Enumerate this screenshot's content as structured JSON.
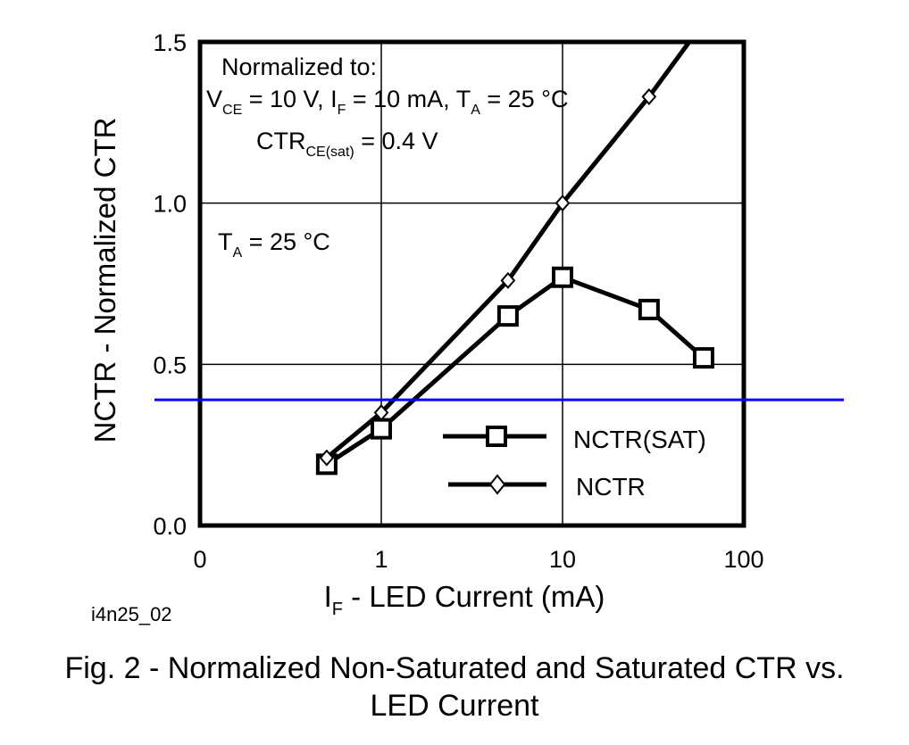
{
  "chart_data": {
    "type": "line",
    "x_scale": "log",
    "xlim": [
      0.1,
      100
    ],
    "ylim": [
      0,
      1.5
    ],
    "grid": true,
    "x_tick_values": [
      0.1,
      1,
      10,
      100
    ],
    "x_tick_labels": [
      "0",
      "1",
      "10",
      "100"
    ],
    "y_ticks": [
      0.0,
      0.5,
      1.0,
      1.5
    ],
    "y_tick_labels": [
      "0.0",
      "0.5",
      "1.0",
      "1.5"
    ],
    "xlabel": {
      "main": "I",
      "sub": "F",
      "rest": " - LED Current (mA)"
    },
    "ylabel": "NCTR - Normalized CTR",
    "series": [
      {
        "name": "NCTR(SAT)",
        "marker": "square",
        "x": [
          0.5,
          1,
          5,
          10,
          30,
          60
        ],
        "y": [
          0.19,
          0.3,
          0.65,
          0.77,
          0.67,
          0.52
        ]
      },
      {
        "name": "NCTR",
        "marker": "diamond",
        "x": [
          0.5,
          1,
          5,
          10,
          30,
          50
        ],
        "y": [
          0.21,
          0.35,
          0.76,
          1.0,
          1.33,
          1.5
        ]
      }
    ],
    "reference_line": {
      "y": 0.39,
      "color": "#0000ff"
    },
    "legend_position": "lower-right",
    "annotations": {
      "normalized_title": "Normalized to:",
      "cond_line": [
        {
          "t": "V",
          "sub": false
        },
        {
          "t": "CE",
          "sub": true
        },
        {
          "t": " = 10 V, I",
          "sub": false
        },
        {
          "t": "F",
          "sub": true
        },
        {
          "t": " = 10 mA, T",
          "sub": false
        },
        {
          "t": "A",
          "sub": true
        },
        {
          "t": " = 25 °C",
          "sub": false
        }
      ],
      "ctr_line": [
        {
          "t": "CTR",
          "sub": false
        },
        {
          "t": "CE(sat)",
          "sub": true
        },
        {
          "t": " = 0.4 V",
          "sub": false
        }
      ],
      "ta_line": [
        {
          "t": "T",
          "sub": false
        },
        {
          "t": "A",
          "sub": true
        },
        {
          "t": " = 25 °C",
          "sub": false
        }
      ]
    },
    "figure_id": "i4n25_02",
    "caption_line1": "Fig. 2 - Normalized Non-Saturated and Saturated CTR vs.",
    "caption_line2": "LED Current"
  }
}
